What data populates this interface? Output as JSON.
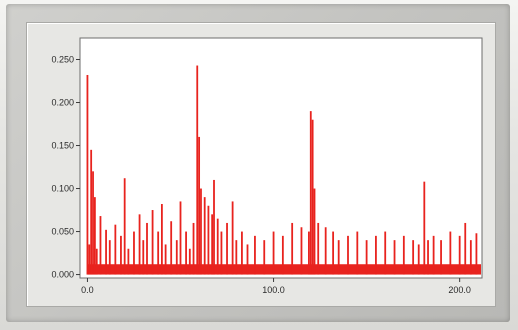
{
  "chart_data": {
    "type": "bar",
    "title": "",
    "xlabel": "",
    "ylabel": "",
    "xlim": [
      -4,
      212
    ],
    "ylim": [
      -0.004,
      0.275
    ],
    "x_ticks": [
      0,
      100,
      200
    ],
    "x_tick_labels": [
      "0.0",
      "100.0",
      "200.0"
    ],
    "y_ticks": [
      0.0,
      0.05,
      0.1,
      0.15,
      0.2,
      0.25
    ],
    "y_tick_labels": [
      "0.000",
      "0.050",
      "0.100",
      "0.150",
      "0.200",
      "0.250"
    ],
    "grid": false,
    "bar_color": "#e8231e",
    "plot_background": "#ffffff",
    "series": [
      {
        "values": [
          [
            0,
            0.232
          ],
          [
            1,
            0.035
          ],
          [
            2,
            0.145
          ],
          [
            3,
            0.12
          ],
          [
            4,
            0.09
          ],
          [
            5,
            0.03
          ],
          [
            7,
            0.068
          ],
          [
            10,
            0.052
          ],
          [
            12,
            0.04
          ],
          [
            15,
            0.058
          ],
          [
            18,
            0.045
          ],
          [
            20,
            0.112
          ],
          [
            22,
            0.03
          ],
          [
            25,
            0.05
          ],
          [
            28,
            0.07
          ],
          [
            30,
            0.04
          ],
          [
            32,
            0.06
          ],
          [
            35,
            0.075
          ],
          [
            38,
            0.05
          ],
          [
            40,
            0.082
          ],
          [
            42,
            0.035
          ],
          [
            45,
            0.062
          ],
          [
            48,
            0.04
          ],
          [
            50,
            0.085
          ],
          [
            53,
            0.05
          ],
          [
            55,
            0.03
          ],
          [
            57,
            0.06
          ],
          [
            59,
            0.243
          ],
          [
            60,
            0.16
          ],
          [
            61,
            0.1
          ],
          [
            63,
            0.09
          ],
          [
            65,
            0.08
          ],
          [
            67,
            0.07
          ],
          [
            68,
            0.11
          ],
          [
            70,
            0.065
          ],
          [
            72,
            0.05
          ],
          [
            75,
            0.06
          ],
          [
            78,
            0.085
          ],
          [
            80,
            0.04
          ],
          [
            83,
            0.05
          ],
          [
            86,
            0.035
          ],
          [
            90,
            0.045
          ],
          [
            95,
            0.04
          ],
          [
            100,
            0.05
          ],
          [
            105,
            0.045
          ],
          [
            110,
            0.06
          ],
          [
            115,
            0.055
          ],
          [
            119,
            0.05
          ],
          [
            120,
            0.19
          ],
          [
            121,
            0.18
          ],
          [
            122,
            0.1
          ],
          [
            124,
            0.06
          ],
          [
            128,
            0.055
          ],
          [
            132,
            0.05
          ],
          [
            135,
            0.04
          ],
          [
            140,
            0.045
          ],
          [
            145,
            0.05
          ],
          [
            150,
            0.04
          ],
          [
            155,
            0.045
          ],
          [
            160,
            0.05
          ],
          [
            165,
            0.04
          ],
          [
            170,
            0.045
          ],
          [
            175,
            0.04
          ],
          [
            178,
            0.035
          ],
          [
            181,
            0.108
          ],
          [
            183,
            0.04
          ],
          [
            186,
            0.045
          ],
          [
            190,
            0.04
          ],
          [
            195,
            0.05
          ],
          [
            200,
            0.045
          ],
          [
            203,
            0.06
          ],
          [
            206,
            0.04
          ],
          [
            209,
            0.048
          ]
        ]
      }
    ]
  }
}
